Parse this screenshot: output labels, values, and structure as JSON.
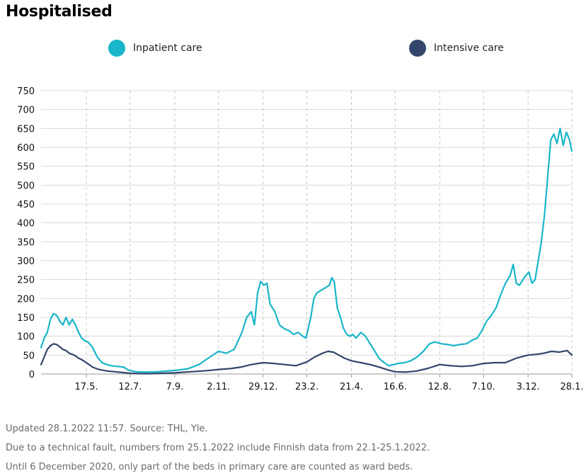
{
  "title": "Hospitalised",
  "legend": [
    {
      "label": "Inpatient care",
      "color": "#19b6c9"
    },
    {
      "label": "Intensive care",
      "color": "#33456b"
    }
  ],
  "footer": [
    "Updated 28.1.2022 11:57. Source: THL, Yle.",
    "Due to a technical fault, numbers from 25.1.2022 include Finnish data from 22.1-25.1.2022.",
    "Until 6 December 2020, only part of the beds in primary care are counted as ward beds."
  ],
  "chart_data": {
    "type": "line",
    "title": "Hospitalised",
    "xlabel": "",
    "ylabel": "",
    "ylim": [
      0,
      750
    ],
    "yticks": [
      0,
      50,
      100,
      150,
      200,
      250,
      300,
      350,
      400,
      450,
      500,
      550,
      600,
      650,
      700,
      750
    ],
    "xlim": [
      "2020-03-20",
      "2022-01-28"
    ],
    "xticks": [
      {
        "label": "17.5.",
        "date": "2020-05-17"
      },
      {
        "label": "12.7.",
        "date": "2020-07-12"
      },
      {
        "label": "7.9.",
        "date": "2020-09-07"
      },
      {
        "label": "2.11.",
        "date": "2020-11-02"
      },
      {
        "label": "29.12.",
        "date": "2020-12-29"
      },
      {
        "label": "23.2.",
        "date": "2021-02-23"
      },
      {
        "label": "21.4.",
        "date": "2021-04-21"
      },
      {
        "label": "16.6.",
        "date": "2021-06-16"
      },
      {
        "label": "12.8.",
        "date": "2021-08-12"
      },
      {
        "label": "7.10.",
        "date": "2021-10-07"
      },
      {
        "label": "3.12.",
        "date": "2021-12-03"
      },
      {
        "label": "28.1.",
        "date": "2022-01-28"
      }
    ],
    "grid": {
      "horizontal": true,
      "vertical": "dashed"
    },
    "legend_position": "top",
    "series": [
      {
        "name": "Inpatient care",
        "color": "#19b6c9",
        "points": [
          [
            "2020-03-20",
            70
          ],
          [
            "2020-03-24",
            95
          ],
          [
            "2020-03-28",
            110
          ],
          [
            "2020-04-01",
            145
          ],
          [
            "2020-04-05",
            160
          ],
          [
            "2020-04-09",
            155
          ],
          [
            "2020-04-13",
            140
          ],
          [
            "2020-04-17",
            130
          ],
          [
            "2020-04-21",
            150
          ],
          [
            "2020-04-25",
            130
          ],
          [
            "2020-04-29",
            145
          ],
          [
            "2020-05-03",
            130
          ],
          [
            "2020-05-07",
            110
          ],
          [
            "2020-05-11",
            95
          ],
          [
            "2020-05-15",
            88
          ],
          [
            "2020-05-19",
            85
          ],
          [
            "2020-05-25",
            70
          ],
          [
            "2020-05-31",
            45
          ],
          [
            "2020-06-06",
            30
          ],
          [
            "2020-06-12",
            25
          ],
          [
            "2020-06-18",
            22
          ],
          [
            "2020-06-26",
            20
          ],
          [
            "2020-07-04",
            18
          ],
          [
            "2020-07-10",
            10
          ],
          [
            "2020-07-20",
            6
          ],
          [
            "2020-08-01",
            5
          ],
          [
            "2020-08-15",
            6
          ],
          [
            "2020-08-29",
            8
          ],
          [
            "2020-09-10",
            10
          ],
          [
            "2020-09-24",
            14
          ],
          [
            "2020-10-08",
            25
          ],
          [
            "2020-10-22",
            45
          ],
          [
            "2020-11-02",
            60
          ],
          [
            "2020-11-12",
            55
          ],
          [
            "2020-11-22",
            65
          ],
          [
            "2020-12-02",
            110
          ],
          [
            "2020-12-08",
            150
          ],
          [
            "2020-12-14",
            165
          ],
          [
            "2020-12-18",
            130
          ],
          [
            "2020-12-22",
            215
          ],
          [
            "2020-12-26",
            245
          ],
          [
            "2020-12-30",
            235
          ],
          [
            "2021-01-03",
            240
          ],
          [
            "2021-01-07",
            185
          ],
          [
            "2021-01-13",
            165
          ],
          [
            "2021-01-19",
            130
          ],
          [
            "2021-01-25",
            120
          ],
          [
            "2021-01-31",
            115
          ],
          [
            "2021-02-06",
            105
          ],
          [
            "2021-02-12",
            110
          ],
          [
            "2021-02-18",
            100
          ],
          [
            "2021-02-22",
            95
          ],
          [
            "2021-02-28",
            150
          ],
          [
            "2021-03-04",
            200
          ],
          [
            "2021-03-08",
            215
          ],
          [
            "2021-03-12",
            220
          ],
          [
            "2021-03-16",
            225
          ],
          [
            "2021-03-20",
            230
          ],
          [
            "2021-03-24",
            235
          ],
          [
            "2021-03-27",
            255
          ],
          [
            "2021-03-30",
            245
          ],
          [
            "2021-04-03",
            175
          ],
          [
            "2021-04-07",
            150
          ],
          [
            "2021-04-11",
            120
          ],
          [
            "2021-04-15",
            105
          ],
          [
            "2021-04-19",
            100
          ],
          [
            "2021-04-23",
            105
          ],
          [
            "2021-04-27",
            95
          ],
          [
            "2021-05-03",
            110
          ],
          [
            "2021-05-09",
            100
          ],
          [
            "2021-05-15",
            80
          ],
          [
            "2021-05-21",
            60
          ],
          [
            "2021-05-27",
            40
          ],
          [
            "2021-06-02",
            30
          ],
          [
            "2021-06-08",
            22
          ],
          [
            "2021-06-14",
            25
          ],
          [
            "2021-06-20",
            28
          ],
          [
            "2021-06-28",
            30
          ],
          [
            "2021-07-06",
            35
          ],
          [
            "2021-07-14",
            45
          ],
          [
            "2021-07-22",
            60
          ],
          [
            "2021-07-30",
            80
          ],
          [
            "2021-08-06",
            85
          ],
          [
            "2021-08-14",
            80
          ],
          [
            "2021-08-22",
            78
          ],
          [
            "2021-08-30",
            75
          ],
          [
            "2021-09-07",
            78
          ],
          [
            "2021-09-15",
            80
          ],
          [
            "2021-09-23",
            90
          ],
          [
            "2021-09-29",
            95
          ],
          [
            "2021-10-05",
            115
          ],
          [
            "2021-10-11",
            140
          ],
          [
            "2021-10-17",
            155
          ],
          [
            "2021-10-23",
            175
          ],
          [
            "2021-10-29",
            210
          ],
          [
            "2021-11-04",
            240
          ],
          [
            "2021-11-10",
            260
          ],
          [
            "2021-11-14",
            290
          ],
          [
            "2021-11-18",
            240
          ],
          [
            "2021-11-22",
            235
          ],
          [
            "2021-11-28",
            255
          ],
          [
            "2021-12-04",
            270
          ],
          [
            "2021-12-08",
            240
          ],
          [
            "2021-12-12",
            250
          ],
          [
            "2021-12-16",
            300
          ],
          [
            "2021-12-20",
            350
          ],
          [
            "2021-12-24",
            420
          ],
          [
            "2021-12-28",
            520
          ],
          [
            "2022-01-01",
            620
          ],
          [
            "2022-01-05",
            635
          ],
          [
            "2022-01-09",
            610
          ],
          [
            "2022-01-13",
            650
          ],
          [
            "2022-01-17",
            605
          ],
          [
            "2022-01-21",
            640
          ],
          [
            "2022-01-25",
            620
          ],
          [
            "2022-01-28",
            590
          ]
        ]
      },
      {
        "name": "Intensive care",
        "color": "#33456b",
        "points": [
          [
            "2020-03-20",
            25
          ],
          [
            "2020-03-24",
            45
          ],
          [
            "2020-03-28",
            65
          ],
          [
            "2020-04-01",
            75
          ],
          [
            "2020-04-05",
            80
          ],
          [
            "2020-04-09",
            78
          ],
          [
            "2020-04-13",
            72
          ],
          [
            "2020-04-17",
            65
          ],
          [
            "2020-04-21",
            62
          ],
          [
            "2020-04-25",
            55
          ],
          [
            "2020-04-29",
            52
          ],
          [
            "2020-05-03",
            48
          ],
          [
            "2020-05-07",
            42
          ],
          [
            "2020-05-11",
            38
          ],
          [
            "2020-05-17",
            30
          ],
          [
            "2020-05-25",
            18
          ],
          [
            "2020-06-02",
            12
          ],
          [
            "2020-06-12",
            8
          ],
          [
            "2020-06-22",
            6
          ],
          [
            "2020-07-02",
            4
          ],
          [
            "2020-07-12",
            2
          ],
          [
            "2020-07-24",
            1
          ],
          [
            "2020-08-07",
            1
          ],
          [
            "2020-08-21",
            2
          ],
          [
            "2020-09-07",
            3
          ],
          [
            "2020-09-21",
            5
          ],
          [
            "2020-10-05",
            7
          ],
          [
            "2020-10-19",
            9
          ],
          [
            "2020-11-02",
            12
          ],
          [
            "2020-11-16",
            14
          ],
          [
            "2020-11-30",
            18
          ],
          [
            "2020-12-14",
            25
          ],
          [
            "2020-12-29",
            30
          ],
          [
            "2021-01-12",
            28
          ],
          [
            "2021-01-26",
            25
          ],
          [
            "2021-02-09",
            22
          ],
          [
            "2021-02-23",
            32
          ],
          [
            "2021-03-05",
            45
          ],
          [
            "2021-03-15",
            55
          ],
          [
            "2021-03-22",
            60
          ],
          [
            "2021-03-29",
            58
          ],
          [
            "2021-04-05",
            50
          ],
          [
            "2021-04-12",
            42
          ],
          [
            "2021-04-21",
            35
          ],
          [
            "2021-05-03",
            30
          ],
          [
            "2021-05-15",
            25
          ],
          [
            "2021-05-27",
            18
          ],
          [
            "2021-06-08",
            10
          ],
          [
            "2021-06-16",
            6
          ],
          [
            "2021-06-30",
            5
          ],
          [
            "2021-07-14",
            8
          ],
          [
            "2021-07-28",
            15
          ],
          [
            "2021-08-12",
            25
          ],
          [
            "2021-08-26",
            22
          ],
          [
            "2021-09-09",
            20
          ],
          [
            "2021-09-23",
            22
          ],
          [
            "2021-10-07",
            28
          ],
          [
            "2021-10-21",
            30
          ],
          [
            "2021-11-04",
            30
          ],
          [
            "2021-11-18",
            42
          ],
          [
            "2021-12-03",
            50
          ],
          [
            "2021-12-13",
            52
          ],
          [
            "2021-12-23",
            55
          ],
          [
            "2022-01-02",
            60
          ],
          [
            "2022-01-12",
            58
          ],
          [
            "2022-01-22",
            62
          ],
          [
            "2022-01-28",
            50
          ]
        ]
      }
    ]
  }
}
